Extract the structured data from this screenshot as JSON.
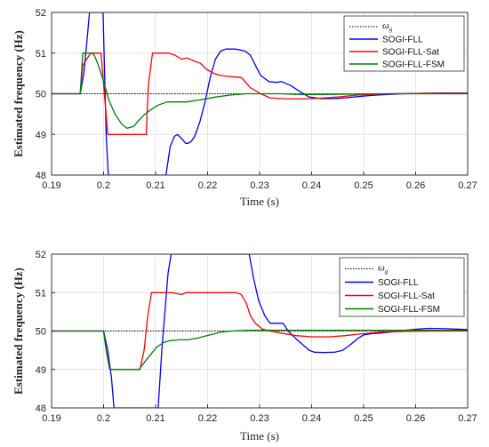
{
  "chart_data": [
    {
      "type": "line",
      "xlabel": "Time (s)",
      "ylabel": "Estimated frequency (Hz)",
      "xlim": [
        0.19,
        0.27
      ],
      "ylim": [
        48,
        52
      ],
      "xticks": [
        "0.19",
        "0.2",
        "0.21",
        "0.22",
        "0.23",
        "0.24",
        "0.25",
        "0.26",
        "0.27"
      ],
      "yticks": [
        "48",
        "49",
        "50",
        "51",
        "52"
      ],
      "grid": true,
      "legend_position": "top-right",
      "series": [
        {
          "name": "ωg",
          "legend_symbol": "ω",
          "legend_sub": "g",
          "color": "#000000",
          "style": "dotted",
          "x": [
            0.19,
            0.27
          ],
          "y": [
            50,
            50
          ]
        },
        {
          "name": "SOGI-FLL",
          "color": "#0000ff",
          "style": "solid",
          "x": [
            0.19,
            0.1955,
            0.1962,
            0.1968,
            0.1973,
            0.1985,
            0.1999,
            0.2005,
            0.2009,
            0.212,
            0.2128,
            0.2136,
            0.2142,
            0.215,
            0.2158,
            0.2162,
            0.2168,
            0.2175,
            0.2185,
            0.2195,
            0.2205,
            0.2215,
            0.2225,
            0.2235,
            0.2243,
            0.2252,
            0.2262,
            0.2272,
            0.2282,
            0.229,
            0.2302,
            0.2318,
            0.2332,
            0.2342,
            0.236,
            0.2378,
            0.2395,
            0.242,
            0.2442,
            0.2465,
            0.249,
            0.2515,
            0.2545,
            0.2575,
            0.261,
            0.265,
            0.27
          ],
          "y": [
            50,
            50,
            50.5,
            51.3,
            52,
            52,
            52,
            49,
            48,
            48,
            48.7,
            48.95,
            49,
            48.9,
            48.78,
            48.78,
            48.82,
            48.95,
            49.3,
            49.8,
            50.4,
            50.85,
            51.05,
            51.1,
            51.1,
            51.1,
            51.08,
            51.05,
            50.95,
            50.75,
            50.45,
            50.3,
            50.28,
            50.3,
            50.2,
            50.05,
            49.92,
            49.88,
            49.88,
            49.9,
            49.93,
            49.96,
            49.98,
            50,
            50.01,
            50.02,
            50.02
          ]
        },
        {
          "name": "SOGI-FLL-Sat",
          "color": "#ff0000",
          "style": "solid",
          "x": [
            0.19,
            0.1955,
            0.196,
            0.1975,
            0.198,
            0.1995,
            0.2008,
            0.2048,
            0.2082,
            0.2086,
            0.2094,
            0.2118,
            0.2125,
            0.2137,
            0.215,
            0.216,
            0.2175,
            0.2186,
            0.2198,
            0.2212,
            0.2225,
            0.2245,
            0.2265,
            0.2282,
            0.2302,
            0.232,
            0.2345,
            0.237,
            0.24,
            0.2425,
            0.245,
            0.249,
            0.255,
            0.262,
            0.27
          ],
          "y": [
            50,
            50,
            50.7,
            51,
            51,
            51,
            49,
            49,
            49,
            50.2,
            51,
            51,
            51,
            50.95,
            50.85,
            50.88,
            50.8,
            50.75,
            50.6,
            50.5,
            50.45,
            50.42,
            50.4,
            50.15,
            50.0,
            49.9,
            49.88,
            49.87,
            49.88,
            49.9,
            49.92,
            49.97,
            50,
            50.01,
            50.01
          ]
        },
        {
          "name": "SOGI-FLL-FSM",
          "color": "#008000",
          "style": "solid",
          "x": [
            0.19,
            0.1955,
            0.196,
            0.1977,
            0.1982,
            0.199,
            0.2,
            0.201,
            0.2022,
            0.2035,
            0.2045,
            0.2058,
            0.2068,
            0.2078,
            0.209,
            0.2105,
            0.2122,
            0.2142,
            0.216,
            0.2185,
            0.2215,
            0.2245,
            0.2275,
            0.2305,
            0.234,
            0.238,
            0.242,
            0.247,
            0.253,
            0.26,
            0.27
          ],
          "y": [
            50,
            50,
            51,
            51,
            50.95,
            50.7,
            50.3,
            49.85,
            49.5,
            49.25,
            49.15,
            49.2,
            49.35,
            49.48,
            49.6,
            49.72,
            49.8,
            49.8,
            49.8,
            49.85,
            49.92,
            49.97,
            50.0,
            50.0,
            50.0,
            49.98,
            49.98,
            49.99,
            50,
            50,
            50
          ]
        }
      ]
    },
    {
      "type": "line",
      "xlabel": "Time (s)",
      "ylabel": "Estimated frequency (Hz)",
      "xlim": [
        0.19,
        0.27
      ],
      "ylim": [
        48,
        52
      ],
      "xticks": [
        "0.19",
        "0.2",
        "0.21",
        "0.22",
        "0.23",
        "0.24",
        "0.25",
        "0.26",
        "0.27"
      ],
      "yticks": [
        "48",
        "49",
        "50",
        "51",
        "52"
      ],
      "grid": true,
      "legend_position": "top-right",
      "series": [
        {
          "name": "ωg",
          "legend_symbol": "ω",
          "legend_sub": "g",
          "color": "#000000",
          "style": "dotted",
          "x": [
            0.19,
            0.27
          ],
          "y": [
            50,
            50
          ]
        },
        {
          "name": "SOGI-FLL",
          "color": "#0000ff",
          "style": "solid",
          "x": [
            0.19,
            0.2,
            0.2008,
            0.2015,
            0.202,
            0.2105,
            0.2112,
            0.2118,
            0.2124,
            0.213,
            0.2138,
            0.228,
            0.2288,
            0.2298,
            0.231,
            0.232,
            0.2345,
            0.2355,
            0.237,
            0.2385,
            0.2395,
            0.2405,
            0.2422,
            0.2445,
            0.246,
            0.2475,
            0.2488,
            0.25,
            0.2515,
            0.2535,
            0.2555,
            0.258,
            0.2605,
            0.2625,
            0.266,
            0.27
          ],
          "y": [
            50,
            50,
            49.5,
            48.8,
            48,
            48,
            49.5,
            50.5,
            51.5,
            52,
            52,
            52,
            51.4,
            50.8,
            50.4,
            50.2,
            50.2,
            50.0,
            49.8,
            49.62,
            49.5,
            49.45,
            49.44,
            49.45,
            49.5,
            49.65,
            49.8,
            49.9,
            49.93,
            49.95,
            49.98,
            50.02,
            50.05,
            50.07,
            50.06,
            50.04
          ]
        },
        {
          "name": "SOGI-FLL-Sat",
          "color": "#ff0000",
          "style": "solid",
          "x": [
            0.19,
            0.2,
            0.2005,
            0.2012,
            0.207,
            0.2078,
            0.2085,
            0.2092,
            0.2122,
            0.2132,
            0.2142,
            0.215,
            0.2158,
            0.2168,
            0.2255,
            0.2265,
            0.2275,
            0.2282,
            0.2292,
            0.2305,
            0.232,
            0.234,
            0.237,
            0.24,
            0.2435,
            0.2465,
            0.249,
            0.253,
            0.258,
            0.265,
            0.27
          ],
          "y": [
            50,
            50,
            49.5,
            49,
            49,
            49.5,
            50.4,
            51,
            51,
            51,
            50.97,
            50.95,
            51,
            51,
            51,
            50.95,
            50.7,
            50.4,
            50.2,
            50.05,
            50.0,
            49.95,
            49.88,
            49.85,
            49.85,
            49.88,
            49.92,
            49.97,
            49.99,
            50,
            50
          ]
        },
        {
          "name": "SOGI-FLL-FSM",
          "color": "#008000",
          "style": "solid",
          "x": [
            0.19,
            0.2,
            0.2005,
            0.2012,
            0.2068,
            0.2085,
            0.2102,
            0.2115,
            0.2128,
            0.2145,
            0.2162,
            0.2182,
            0.2205,
            0.2225,
            0.2245,
            0.228,
            0.233,
            0.24,
            0.27
          ],
          "y": [
            50,
            50,
            49.5,
            49,
            49,
            49.3,
            49.58,
            49.7,
            49.75,
            49.77,
            49.77,
            49.82,
            49.9,
            49.97,
            50.0,
            50.02,
            50.02,
            50.02,
            50.02
          ]
        }
      ]
    }
  ]
}
